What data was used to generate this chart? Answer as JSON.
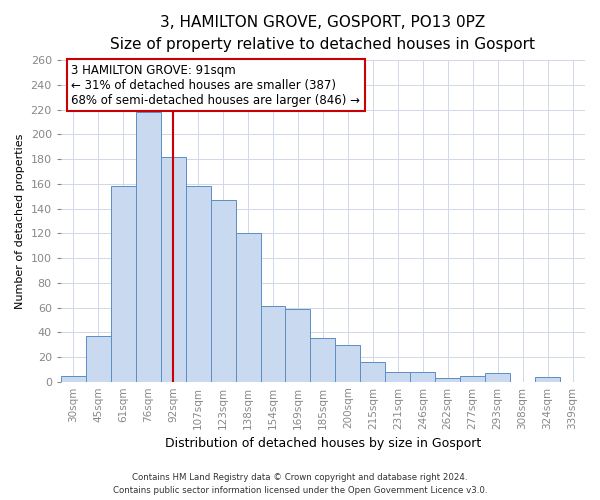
{
  "title": "3, HAMILTON GROVE, GOSPORT, PO13 0PZ",
  "subtitle": "Size of property relative to detached houses in Gosport",
  "xlabel": "Distribution of detached houses by size in Gosport",
  "ylabel": "Number of detached properties",
  "categories": [
    "30sqm",
    "45sqm",
    "61sqm",
    "76sqm",
    "92sqm",
    "107sqm",
    "123sqm",
    "138sqm",
    "154sqm",
    "169sqm",
    "185sqm",
    "200sqm",
    "215sqm",
    "231sqm",
    "246sqm",
    "262sqm",
    "277sqm",
    "293sqm",
    "308sqm",
    "324sqm",
    "339sqm"
  ],
  "values": [
    5,
    37,
    158,
    218,
    182,
    158,
    147,
    120,
    61,
    59,
    35,
    30,
    16,
    8,
    8,
    3,
    5,
    7,
    0,
    4,
    0
  ],
  "bar_color": "#c9d9f0",
  "bar_edge_color": "#5b8ec4",
  "vline_x_index": 4,
  "vline_color": "#cc0000",
  "ylim": [
    0,
    260
  ],
  "yticks": [
    0,
    20,
    40,
    60,
    80,
    100,
    120,
    140,
    160,
    180,
    200,
    220,
    240,
    260
  ],
  "annotation_title": "3 HAMILTON GROVE: 91sqm",
  "annotation_line1": "← 31% of detached houses are smaller (387)",
  "annotation_line2": "68% of semi-detached houses are larger (846) →",
  "annotation_box_color": "#ffffff",
  "annotation_box_edge": "#cc0000",
  "footer_line1": "Contains HM Land Registry data © Crown copyright and database right 2024.",
  "footer_line2": "Contains public sector information licensed under the Open Government Licence v3.0.",
  "background_color": "#ffffff",
  "grid_color": "#d0d8e8",
  "title_fontsize": 11,
  "subtitle_fontsize": 9.5
}
